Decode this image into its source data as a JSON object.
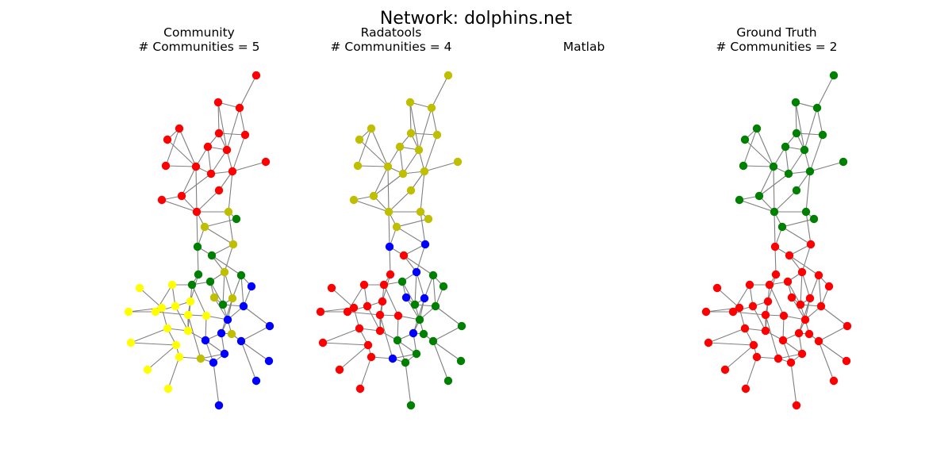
{
  "figure": {
    "title": "Network: dolphins.net"
  },
  "panels": [
    {
      "id": "community",
      "title_line1": "Community",
      "title_line2": "# Communities = 5",
      "empty": false
    },
    {
      "id": "radatools",
      "title_line1": "Radatools",
      "title_line2": "# Communities = 4",
      "empty": false
    },
    {
      "id": "matlab",
      "title_line1": "Matlab",
      "title_line2": "",
      "empty": true
    },
    {
      "id": "ground-truth",
      "title_line1": "Ground Truth",
      "title_line2": "# Communities = 2",
      "empty": false
    }
  ],
  "colors": {
    "edge": "#808080",
    "red": "#ff0000",
    "olive": "#bfbf00",
    "green": "#008000",
    "blue": "#0000ff",
    "yellow": "#ffff00"
  }
}
